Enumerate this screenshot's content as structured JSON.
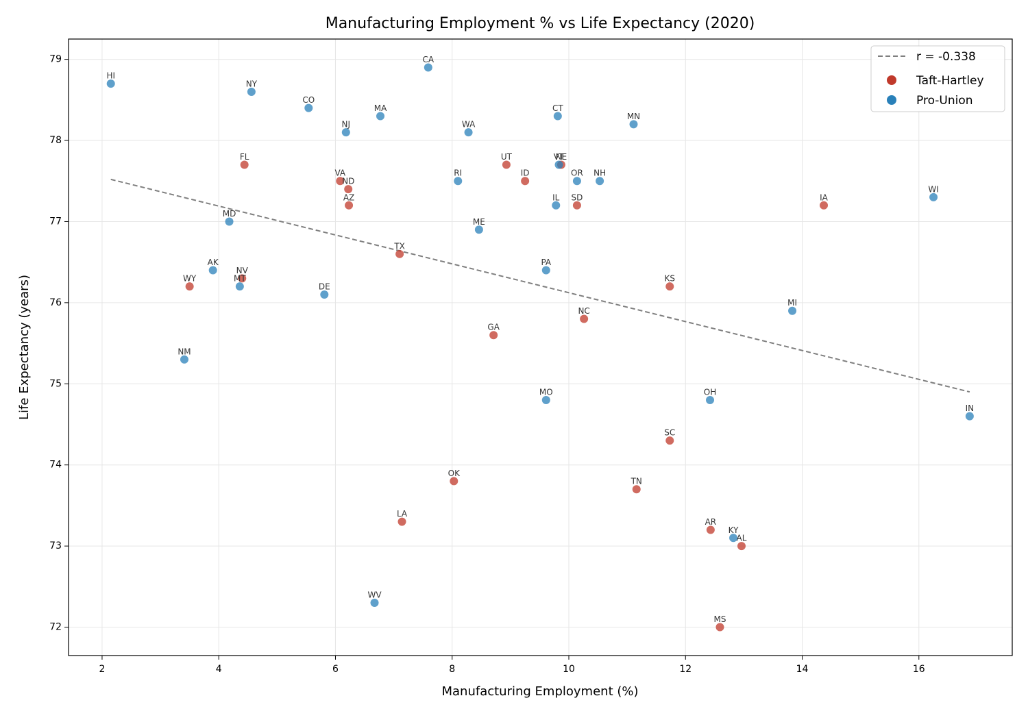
{
  "chart_data": {
    "type": "scatter",
    "title": "Manufacturing Employment % vs Life Expectancy (2020)",
    "x_label": "Manufacturing Employment (%)",
    "y_label": "Life Expectancy (years)",
    "xlim": [
      1.425,
      17.6
    ],
    "ylim": [
      71.65,
      79.25
    ],
    "xticks": [
      2,
      4,
      6,
      8,
      10,
      12,
      14,
      16
    ],
    "yticks": [
      72,
      73,
      74,
      75,
      76,
      77,
      78,
      79
    ],
    "grid": true,
    "legend": "upper right",
    "trend_line": {
      "name": "r = -0.338",
      "color": "#7f7f7f",
      "x": [
        2.15,
        16.87
      ],
      "y": [
        77.52,
        74.9
      ]
    },
    "series": [
      {
        "name": "Taft-Hartley",
        "color": "#c0392b",
        "labels": [
          "FL",
          "VA",
          "ND",
          "AZ",
          "UT",
          "ID",
          "NE",
          "SD",
          "IA",
          "TX",
          "WY",
          "NV",
          "KS",
          "NC",
          "GA",
          "SC",
          "OK",
          "TN",
          "LA",
          "AR",
          "AL",
          "MS"
        ],
        "x": [
          4.44,
          6.08,
          6.22,
          6.23,
          8.93,
          9.25,
          9.87,
          10.14,
          14.37,
          7.1,
          3.5,
          4.4,
          11.73,
          10.26,
          8.71,
          11.73,
          8.03,
          11.16,
          7.14,
          12.43,
          12.96,
          12.59
        ],
        "values": [
          77.7,
          77.5,
          77.4,
          77.2,
          77.7,
          77.5,
          77.7,
          77.2,
          77.2,
          76.6,
          76.2,
          76.3,
          76.2,
          75.8,
          75.6,
          74.3,
          73.8,
          73.7,
          73.3,
          73.2,
          73.0,
          72.0
        ]
      },
      {
        "name": "Pro-Union",
        "color": "#2980b9",
        "labels": [
          "HI",
          "NY",
          "CO",
          "MA",
          "NJ",
          "CA",
          "WA",
          "CT",
          "MN",
          "RI",
          "VT",
          "OR",
          "NH",
          "IL",
          "WI",
          "MD",
          "ME",
          "AK",
          "MT",
          "DE",
          "PA",
          "MI",
          "NM",
          "MO",
          "OH",
          "IN",
          "KY",
          "WV"
        ],
        "x": [
          2.15,
          4.56,
          5.54,
          6.77,
          6.18,
          7.59,
          8.28,
          9.81,
          11.11,
          8.1,
          9.83,
          10.14,
          10.53,
          9.78,
          16.25,
          4.18,
          8.46,
          3.9,
          4.36,
          5.81,
          9.61,
          13.83,
          3.41,
          9.61,
          12.42,
          16.87,
          12.82,
          6.67
        ],
        "values": [
          78.7,
          78.6,
          78.4,
          78.3,
          78.1,
          78.9,
          78.1,
          78.3,
          78.2,
          77.5,
          77.7,
          77.5,
          77.5,
          77.2,
          77.3,
          77.0,
          76.9,
          76.4,
          76.2,
          76.1,
          76.4,
          75.9,
          75.3,
          74.8,
          74.8,
          74.6,
          73.1,
          72.3
        ]
      }
    ]
  }
}
